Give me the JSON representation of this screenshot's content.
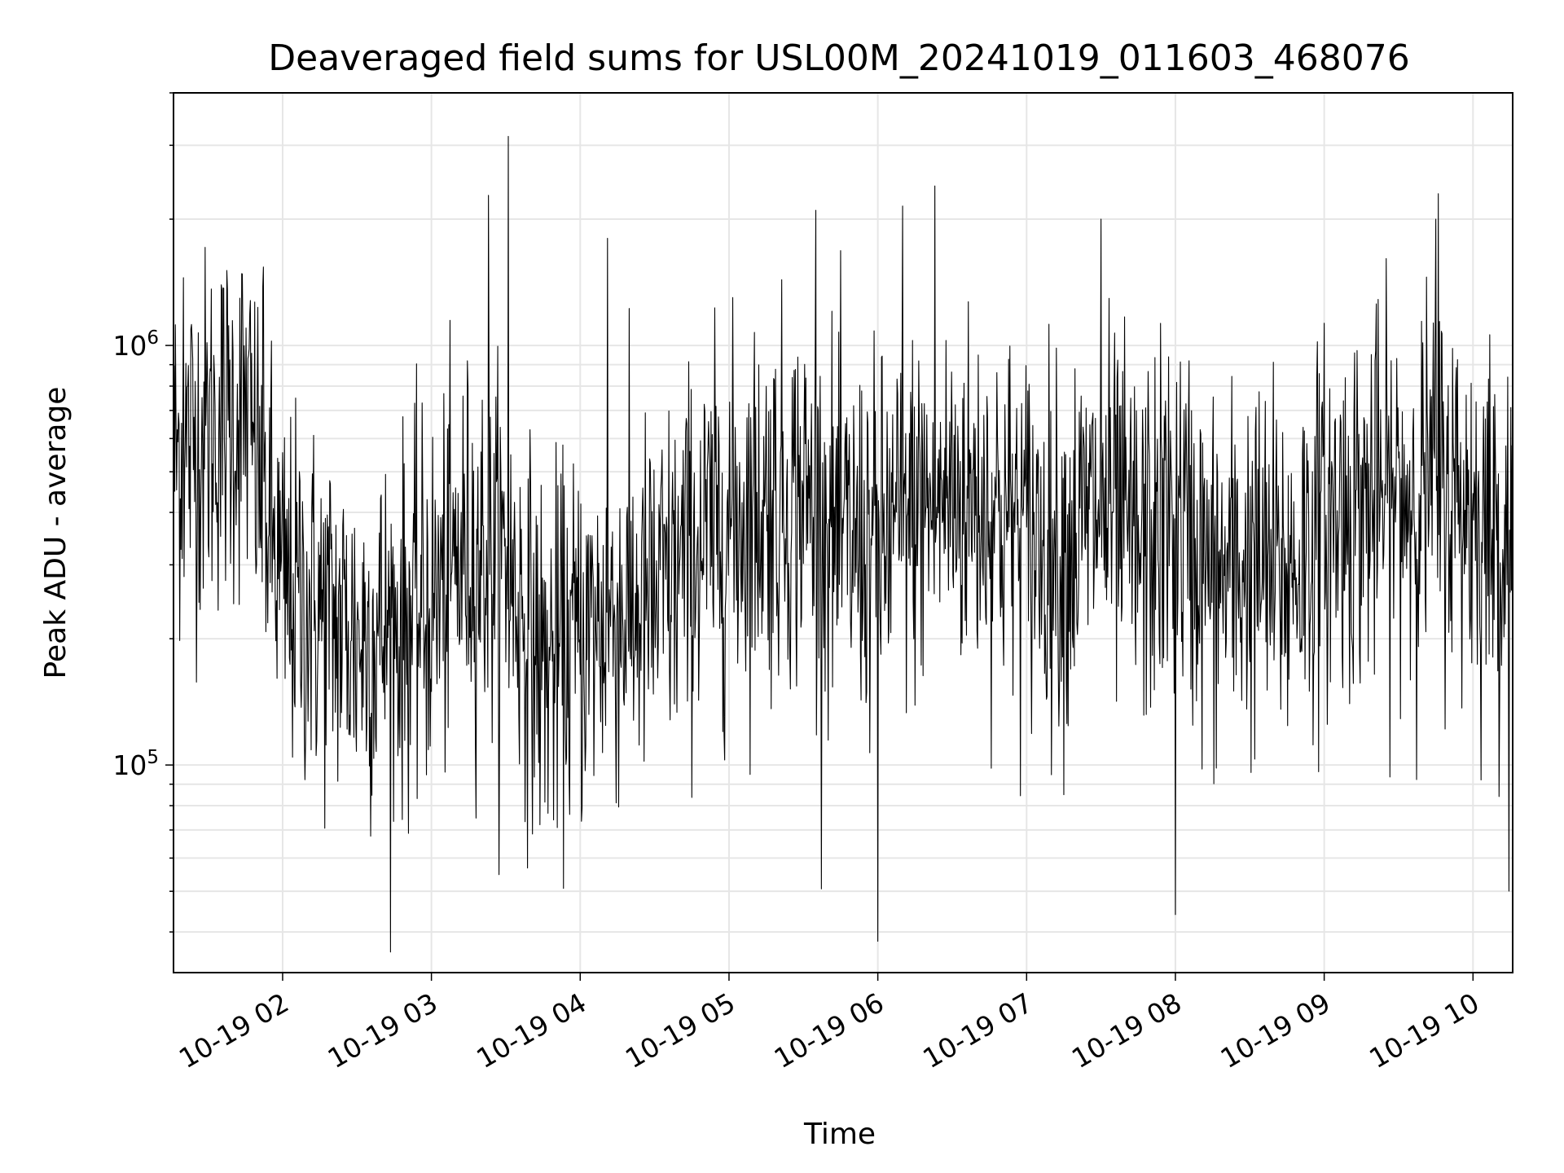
{
  "chart_data": {
    "type": "line",
    "title": "Deaveraged field sums for USL00M_20241019_011603_468076",
    "xlabel": "Time",
    "ylabel": "Peak ADU - average",
    "xlim": [
      "10-19 01:16",
      "10-19 10:16"
    ],
    "ylim": [
      32000,
      4000000
    ],
    "yscale": "log",
    "grid": true,
    "x_ticks": [
      "10-19 02",
      "10-19 03",
      "10-19 04",
      "10-19 05",
      "10-19 06",
      "10-19 07",
      "10-19 08",
      "10-19 09",
      "10-19 10"
    ],
    "y_ticks": [
      {
        "base": "10",
        "exp": "6",
        "value": 1000000
      },
      {
        "base": "10",
        "exp": "5",
        "value": 100000
      }
    ],
    "series": [
      {
        "color": "#000000",
        "sample_interval_minutes": 0.25,
        "x_range": [
          "10-19 01:16",
          "10-19 10:16"
        ],
        "envelope_points": [
          {
            "x": "10-19 01:16",
            "y": 550000
          },
          {
            "x": "10-19 01:30",
            "y": 620000
          },
          {
            "x": "10-19 01:45",
            "y": 700000
          },
          {
            "x": "10-19 02:00",
            "y": 260000
          },
          {
            "x": "10-19 02:15",
            "y": 230000
          },
          {
            "x": "10-19 02:30",
            "y": 200000
          },
          {
            "x": "10-19 02:45",
            "y": 210000
          },
          {
            "x": "10-19 03:00",
            "y": 240000
          },
          {
            "x": "10-19 03:15",
            "y": 330000
          },
          {
            "x": "10-19 03:30",
            "y": 300000
          },
          {
            "x": "10-19 03:45",
            "y": 170000
          },
          {
            "x": "10-19 04:00",
            "y": 200000
          },
          {
            "x": "10-19 04:15",
            "y": 230000
          },
          {
            "x": "10-19 04:30",
            "y": 240000
          },
          {
            "x": "10-19 04:45",
            "y": 320000
          },
          {
            "x": "10-19 05:00",
            "y": 380000
          },
          {
            "x": "10-19 05:15",
            "y": 420000
          },
          {
            "x": "10-19 05:30",
            "y": 440000
          },
          {
            "x": "10-19 05:45",
            "y": 340000
          },
          {
            "x": "10-19 06:00",
            "y": 330000
          },
          {
            "x": "10-19 06:15",
            "y": 400000
          },
          {
            "x": "10-19 06:30",
            "y": 440000
          },
          {
            "x": "10-19 06:45",
            "y": 420000
          },
          {
            "x": "10-19 07:00",
            "y": 360000
          },
          {
            "x": "10-19 07:15",
            "y": 320000
          },
          {
            "x": "10-19 07:30",
            "y": 420000
          },
          {
            "x": "10-19 07:45",
            "y": 320000
          },
          {
            "x": "10-19 08:00",
            "y": 400000
          },
          {
            "x": "10-19 08:15",
            "y": 270000
          },
          {
            "x": "10-19 08:30",
            "y": 300000
          },
          {
            "x": "10-19 08:45",
            "y": 280000
          },
          {
            "x": "10-19 09:00",
            "y": 380000
          },
          {
            "x": "10-19 09:15",
            "y": 420000
          },
          {
            "x": "10-19 09:30",
            "y": 430000
          },
          {
            "x": "10-19 09:45",
            "y": 480000
          },
          {
            "x": "10-19 10:00",
            "y": 400000
          },
          {
            "x": "10-19 10:16",
            "y": 330000
          }
        ],
        "spikes": [
          {
            "x": "10-19 01:20",
            "y": 1450000
          },
          {
            "x": "10-19 01:52",
            "y": 1380000
          },
          {
            "x": "10-19 03:23",
            "y": 2280000
          },
          {
            "x": "10-19 03:31",
            "y": 3150000
          },
          {
            "x": "10-19 04:11",
            "y": 1800000
          },
          {
            "x": "10-19 05:35",
            "y": 2100000
          },
          {
            "x": "10-19 06:00",
            "y": 38000
          },
          {
            "x": "10-19 06:10",
            "y": 2150000
          },
          {
            "x": "10-19 06:23",
            "y": 2400000
          },
          {
            "x": "10-19 07:30",
            "y": 2000000
          },
          {
            "x": "10-19 08:00",
            "y": 44000
          },
          {
            "x": "10-19 09:46",
            "y": 2300000
          },
          {
            "x": "10-19 09:45",
            "y": 2000000
          }
        ]
      }
    ]
  }
}
